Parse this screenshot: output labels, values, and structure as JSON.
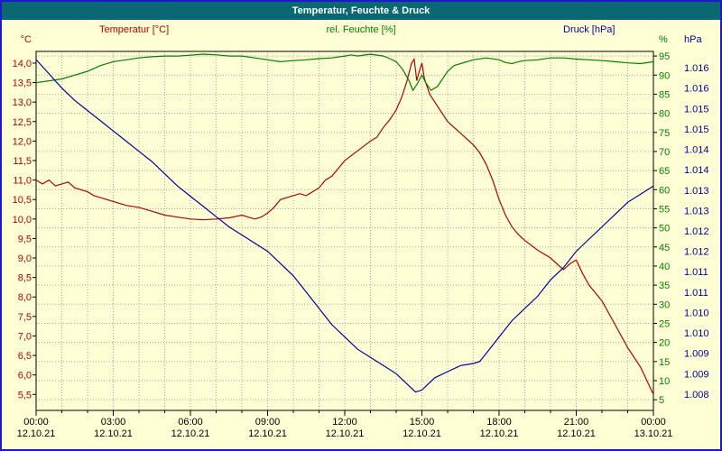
{
  "window": {
    "title": "Temperatur, Feuchte & Druck"
  },
  "legend": {
    "temperature": "Temperatur [°C]",
    "humidity": "rel. Feuchte [%]",
    "pressure": "Druck [hPa]"
  },
  "colors": {
    "window_bg": "#FFFFD6",
    "window_border": "#1A1AC8",
    "titlebar_bg": "#0A6873",
    "titlebar_text": "#FFFFFF",
    "grid": "#A8A8A8",
    "plot_border": "#000000",
    "temperature": "#B40000",
    "humidity": "#008000",
    "pressure": "#0000A0",
    "axis_text": "#000000"
  },
  "chart_data": {
    "type": "line",
    "title": "Temperatur, Feuchte & Druck",
    "grid": true,
    "x_axis": {
      "range": [
        0,
        24
      ],
      "tick_hours": [
        0,
        3,
        6,
        9,
        12,
        15,
        18,
        21,
        24
      ],
      "time_labels": [
        "00:00",
        "03:00",
        "06:00",
        "09:00",
        "12:00",
        "15:00",
        "18:00",
        "21:00",
        "00:00"
      ],
      "date_labels": [
        "12.10.21",
        "12.10.21",
        "12.10.21",
        "12.10.21",
        "12.10.21",
        "12.10.21",
        "12.10.21",
        "12.10.21",
        "13.10.21"
      ]
    },
    "axes": {
      "temperature": {
        "unit": "°C",
        "color": "#B40000",
        "min": 5.09,
        "max": 14.3,
        "tick_values": [
          14,
          13.5,
          13,
          12.5,
          12,
          11.5,
          11,
          10.5,
          10,
          9.5,
          9,
          8.5,
          8,
          7.5,
          7,
          6.5,
          6,
          5.5
        ],
        "tick_labels": [
          "14,0",
          "13,5",
          "13,0",
          "12,5",
          "12,0",
          "11,5",
          "11,0",
          "10,5",
          "10,0",
          "9,5",
          "9,0",
          "8,5",
          "8,0",
          "7,5",
          "7,0",
          "6,5",
          "6,0",
          "5,5"
        ]
      },
      "humidity": {
        "unit": "%",
        "color": "#008000",
        "min": 2.2,
        "max": 96.2,
        "tick_values": [
          95,
          90,
          85,
          80,
          75,
          70,
          65,
          60,
          55,
          50,
          45,
          40,
          35,
          30,
          25,
          20,
          15,
          10,
          5
        ],
        "tick_labels": [
          "95",
          "90",
          "85",
          "80",
          "75",
          "70",
          "65",
          "60",
          "55",
          "50",
          "45",
          "40",
          "35",
          "30",
          "25",
          "20",
          "15",
          "10",
          "5"
        ]
      },
      "pressure": {
        "unit": "hPa",
        "color": "#0000A0",
        "min": 1.0076,
        "max": 1.0164,
        "tick_values": [
          1.016,
          1.0155,
          1.015,
          1.0145,
          1.014,
          1.0135,
          1.013,
          1.0125,
          1.012,
          1.0115,
          1.011,
          1.0105,
          1.01,
          1.0095,
          1.009,
          1.0085,
          1.008
        ],
        "tick_labels": [
          "1.016",
          "1.016",
          "1.015",
          "1.015",
          "1.014",
          "1.014",
          "1.013",
          "1.013",
          "1.012",
          "1.012",
          "1.011",
          "1.011",
          "1.010",
          "1.010",
          "1.009",
          "1.009",
          "1.008"
        ]
      }
    },
    "series": [
      {
        "name": "Temperatur",
        "axis": "temperature",
        "color": "#B40000",
        "points": [
          [
            0,
            11.0
          ],
          [
            0.25,
            10.9
          ],
          [
            0.5,
            11.0
          ],
          [
            0.75,
            10.85
          ],
          [
            1,
            10.9
          ],
          [
            1.25,
            10.95
          ],
          [
            1.5,
            10.8
          ],
          [
            1.75,
            10.75
          ],
          [
            2,
            10.7
          ],
          [
            2.25,
            10.6
          ],
          [
            2.5,
            10.55
          ],
          [
            3,
            10.45
          ],
          [
            3.5,
            10.35
          ],
          [
            4,
            10.3
          ],
          [
            4.5,
            10.2
          ],
          [
            5,
            10.1
          ],
          [
            5.5,
            10.05
          ],
          [
            6,
            10.0
          ],
          [
            6.5,
            9.98
          ],
          [
            7,
            10.0
          ],
          [
            7.5,
            10.03
          ],
          [
            8,
            10.1
          ],
          [
            8.25,
            10.05
          ],
          [
            8.5,
            10.0
          ],
          [
            8.75,
            10.05
          ],
          [
            9,
            10.15
          ],
          [
            9.25,
            10.3
          ],
          [
            9.5,
            10.5
          ],
          [
            10,
            10.6
          ],
          [
            10.25,
            10.65
          ],
          [
            10.5,
            10.6
          ],
          [
            10.75,
            10.7
          ],
          [
            11,
            10.8
          ],
          [
            11.25,
            11.0
          ],
          [
            11.5,
            11.1
          ],
          [
            11.75,
            11.3
          ],
          [
            12,
            11.5
          ],
          [
            12.5,
            11.75
          ],
          [
            13,
            12.0
          ],
          [
            13.25,
            12.1
          ],
          [
            13.5,
            12.35
          ],
          [
            13.75,
            12.55
          ],
          [
            14,
            12.8
          ],
          [
            14.2,
            13.1
          ],
          [
            14.4,
            13.5
          ],
          [
            14.6,
            14.0
          ],
          [
            14.7,
            14.1
          ],
          [
            14.8,
            13.55
          ],
          [
            14.9,
            13.8
          ],
          [
            15,
            14.0
          ],
          [
            15.1,
            13.6
          ],
          [
            15.3,
            13.2
          ],
          [
            15.5,
            13.0
          ],
          [
            15.75,
            12.75
          ],
          [
            16,
            12.5
          ],
          [
            16.5,
            12.2
          ],
          [
            17,
            11.9
          ],
          [
            17.25,
            11.7
          ],
          [
            17.5,
            11.4
          ],
          [
            17.75,
            11.0
          ],
          [
            18,
            10.5
          ],
          [
            18.25,
            10.1
          ],
          [
            18.5,
            9.8
          ],
          [
            18.75,
            9.6
          ],
          [
            19,
            9.45
          ],
          [
            19.5,
            9.2
          ],
          [
            20,
            9.0
          ],
          [
            20.25,
            8.85
          ],
          [
            20.5,
            8.7
          ],
          [
            20.75,
            8.85
          ],
          [
            21,
            8.95
          ],
          [
            21.25,
            8.6
          ],
          [
            21.5,
            8.3
          ],
          [
            22,
            7.9
          ],
          [
            22.5,
            7.3
          ],
          [
            23,
            6.7
          ],
          [
            23.5,
            6.2
          ],
          [
            23.75,
            5.85
          ],
          [
            24,
            5.5
          ]
        ]
      },
      {
        "name": "rel. Feuchte",
        "axis": "humidity",
        "color": "#008000",
        "points": [
          [
            0,
            88
          ],
          [
            0.5,
            88.5
          ],
          [
            1,
            89
          ],
          [
            1.5,
            90
          ],
          [
            2,
            91
          ],
          [
            2.5,
            92.5
          ],
          [
            3,
            93.5
          ],
          [
            3.5,
            94
          ],
          [
            4,
            94.5
          ],
          [
            4.5,
            94.8
          ],
          [
            5,
            95
          ],
          [
            5.5,
            95
          ],
          [
            6,
            95.2
          ],
          [
            6.5,
            95.5
          ],
          [
            7,
            95.3
          ],
          [
            7.5,
            95
          ],
          [
            8,
            95
          ],
          [
            8.5,
            94.5
          ],
          [
            9,
            94
          ],
          [
            9.5,
            93.5
          ],
          [
            10,
            93.8
          ],
          [
            10.5,
            94
          ],
          [
            11,
            94.3
          ],
          [
            11.5,
            94.5
          ],
          [
            12,
            95
          ],
          [
            12.25,
            95.3
          ],
          [
            12.5,
            95
          ],
          [
            13,
            95.5
          ],
          [
            13.5,
            95
          ],
          [
            13.75,
            94.3
          ],
          [
            14,
            93.5
          ],
          [
            14.25,
            91.5
          ],
          [
            14.5,
            88.5
          ],
          [
            14.65,
            86
          ],
          [
            14.8,
            87.5
          ],
          [
            15,
            90
          ],
          [
            15.15,
            88
          ],
          [
            15.35,
            86
          ],
          [
            15.6,
            87
          ],
          [
            15.8,
            89
          ],
          [
            16,
            91
          ],
          [
            16.25,
            92.5
          ],
          [
            16.5,
            93
          ],
          [
            17,
            94
          ],
          [
            17.5,
            94.5
          ],
          [
            18,
            94
          ],
          [
            18.25,
            93.3
          ],
          [
            18.5,
            93
          ],
          [
            18.75,
            93.5
          ],
          [
            19,
            93.8
          ],
          [
            19.5,
            94
          ],
          [
            20,
            94.5
          ],
          [
            20.5,
            94.5
          ],
          [
            21,
            94.2
          ],
          [
            21.5,
            94
          ],
          [
            22,
            93.8
          ],
          [
            22.5,
            93.5
          ],
          [
            23,
            93.2
          ],
          [
            23.5,
            93
          ],
          [
            24,
            93.5
          ]
        ]
      },
      {
        "name": "Druck",
        "axis": "pressure",
        "color": "#0000A0",
        "points": [
          [
            0,
            1.0162
          ],
          [
            0.5,
            1.01585
          ],
          [
            1,
            1.0155
          ],
          [
            1.5,
            1.0152
          ],
          [
            2,
            1.01495
          ],
          [
            2.5,
            1.0147
          ],
          [
            3,
            1.01445
          ],
          [
            3.5,
            1.0142
          ],
          [
            4,
            1.01395
          ],
          [
            4.5,
            1.0137
          ],
          [
            5,
            1.0134
          ],
          [
            5.5,
            1.0131
          ],
          [
            6,
            1.01285
          ],
          [
            6.5,
            1.0126
          ],
          [
            7,
            1.01235
          ],
          [
            7.5,
            1.0121
          ],
          [
            8,
            1.0119
          ],
          [
            8.5,
            1.0117
          ],
          [
            9,
            1.0115
          ],
          [
            9.5,
            1.0112
          ],
          [
            10,
            1.0109
          ],
          [
            10.5,
            1.0105
          ],
          [
            11,
            1.0101
          ],
          [
            11.5,
            1.0097
          ],
          [
            12,
            1.0094
          ],
          [
            12.5,
            1.0091
          ],
          [
            13,
            1.0089
          ],
          [
            13.5,
            1.0087
          ],
          [
            14,
            1.0085
          ],
          [
            14.5,
            1.0082
          ],
          [
            14.75,
            1.00805
          ],
          [
            15,
            1.0081
          ],
          [
            15.25,
            1.00825
          ],
          [
            15.5,
            1.0084
          ],
          [
            16,
            1.00855
          ],
          [
            16.5,
            1.0087
          ],
          [
            17,
            1.00875
          ],
          [
            17.25,
            1.0088
          ],
          [
            17.5,
            1.009
          ],
          [
            18,
            1.0094
          ],
          [
            18.5,
            1.0098
          ],
          [
            19,
            1.0101
          ],
          [
            19.5,
            1.0104
          ],
          [
            20,
            1.0108
          ],
          [
            20.5,
            1.0111
          ],
          [
            21,
            1.0115
          ],
          [
            21.5,
            1.0118
          ],
          [
            22,
            1.0121
          ],
          [
            22.5,
            1.0124
          ],
          [
            23,
            1.0127
          ],
          [
            23.5,
            1.0129
          ],
          [
            24,
            1.0131
          ]
        ]
      }
    ]
  }
}
